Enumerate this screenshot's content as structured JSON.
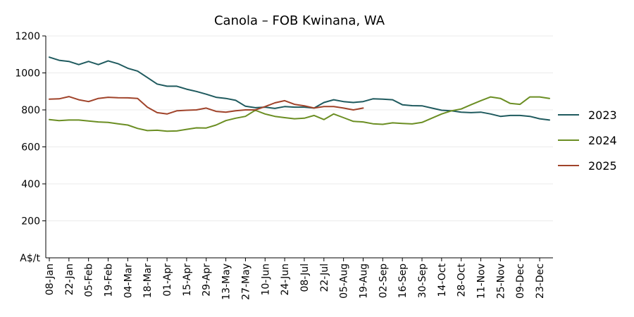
{
  "chart_data": {
    "type": "line",
    "title": "Canola – FOB Kwinana, WA",
    "ylabel": "A$/t",
    "ylim": [
      0,
      1200
    ],
    "y_ticks": [
      200,
      400,
      600,
      800,
      1000,
      1200
    ],
    "x_tick_labels": [
      "08-Jan",
      "22-Jan",
      "05-Feb",
      "19-Feb",
      "04-Mar",
      "18-Mar",
      "01-Apr",
      "15-Apr",
      "29-Apr",
      "13-May",
      "27-May",
      "10-Jun",
      "24-Jun",
      "08-Jul",
      "22-Jul",
      "05-Aug",
      "19-Aug",
      "02-Sep",
      "16-Sep",
      "30-Sep",
      "14-Oct",
      "28-Oct",
      "11-Nov",
      "25-Nov",
      "09-Dec",
      "23-Dec"
    ],
    "x_unit": "week",
    "x_domain": [
      1,
      52
    ],
    "grid": "horizontal",
    "legend_position": "right",
    "series": [
      {
        "name": "2023",
        "color": "#1f5a5e",
        "x": [
          1,
          2,
          3,
          4,
          5,
          6,
          7,
          8,
          9,
          10,
          11,
          12,
          13,
          14,
          15,
          16,
          17,
          18,
          19,
          20,
          21,
          22,
          23,
          24,
          25,
          26,
          27,
          28,
          29,
          30,
          31,
          32,
          33,
          34,
          35,
          36,
          37,
          38,
          39,
          40,
          41,
          42,
          43,
          44,
          45,
          46,
          47,
          48,
          49,
          50,
          51,
          52
        ],
        "values": [
          1085,
          1068,
          1062,
          1045,
          1062,
          1045,
          1065,
          1050,
          1025,
          1010,
          975,
          940,
          928,
          928,
          912,
          900,
          885,
          868,
          862,
          852,
          820,
          812,
          815,
          808,
          818,
          815,
          815,
          810,
          840,
          855,
          845,
          840,
          845,
          860,
          858,
          855,
          828,
          823,
          822,
          810,
          798,
          795,
          788,
          785,
          788,
          778,
          765,
          770,
          770,
          765,
          752,
          745
        ]
      },
      {
        "name": "2024",
        "color": "#6b8e23",
        "x": [
          1,
          2,
          3,
          4,
          5,
          6,
          7,
          8,
          9,
          10,
          11,
          12,
          13,
          14,
          15,
          16,
          17,
          18,
          19,
          20,
          21,
          22,
          23,
          24,
          25,
          26,
          27,
          28,
          29,
          30,
          31,
          32,
          33,
          34,
          35,
          36,
          37,
          38,
          39,
          40,
          41,
          42,
          43,
          44,
          45,
          46,
          47,
          48,
          49,
          50,
          51,
          52
        ],
        "values": [
          748,
          742,
          745,
          745,
          740,
          735,
          732,
          725,
          718,
          700,
          688,
          690,
          685,
          686,
          695,
          703,
          702,
          718,
          742,
          755,
          765,
          798,
          778,
          765,
          758,
          752,
          755,
          770,
          748,
          778,
          758,
          738,
          735,
          725,
          722,
          730,
          727,
          724,
          732,
          755,
          778,
          795,
          805,
          828,
          850,
          870,
          862,
          835,
          830,
          870,
          870,
          862
        ]
      },
      {
        "name": "2025",
        "color": "#a0432a",
        "x": [
          1,
          2,
          3,
          4,
          5,
          6,
          7,
          8,
          9,
          10,
          11,
          12,
          13,
          14,
          15,
          16,
          17,
          18,
          19,
          20,
          21,
          22,
          23,
          24,
          25,
          26,
          27,
          28,
          29,
          30,
          31,
          32,
          33
        ],
        "values": [
          858,
          860,
          872,
          855,
          845,
          862,
          868,
          866,
          865,
          862,
          815,
          785,
          778,
          795,
          798,
          800,
          810,
          792,
          788,
          795,
          800,
          800,
          818,
          838,
          850,
          830,
          822,
          810,
          818,
          818,
          810,
          800,
          810
        ]
      }
    ]
  }
}
